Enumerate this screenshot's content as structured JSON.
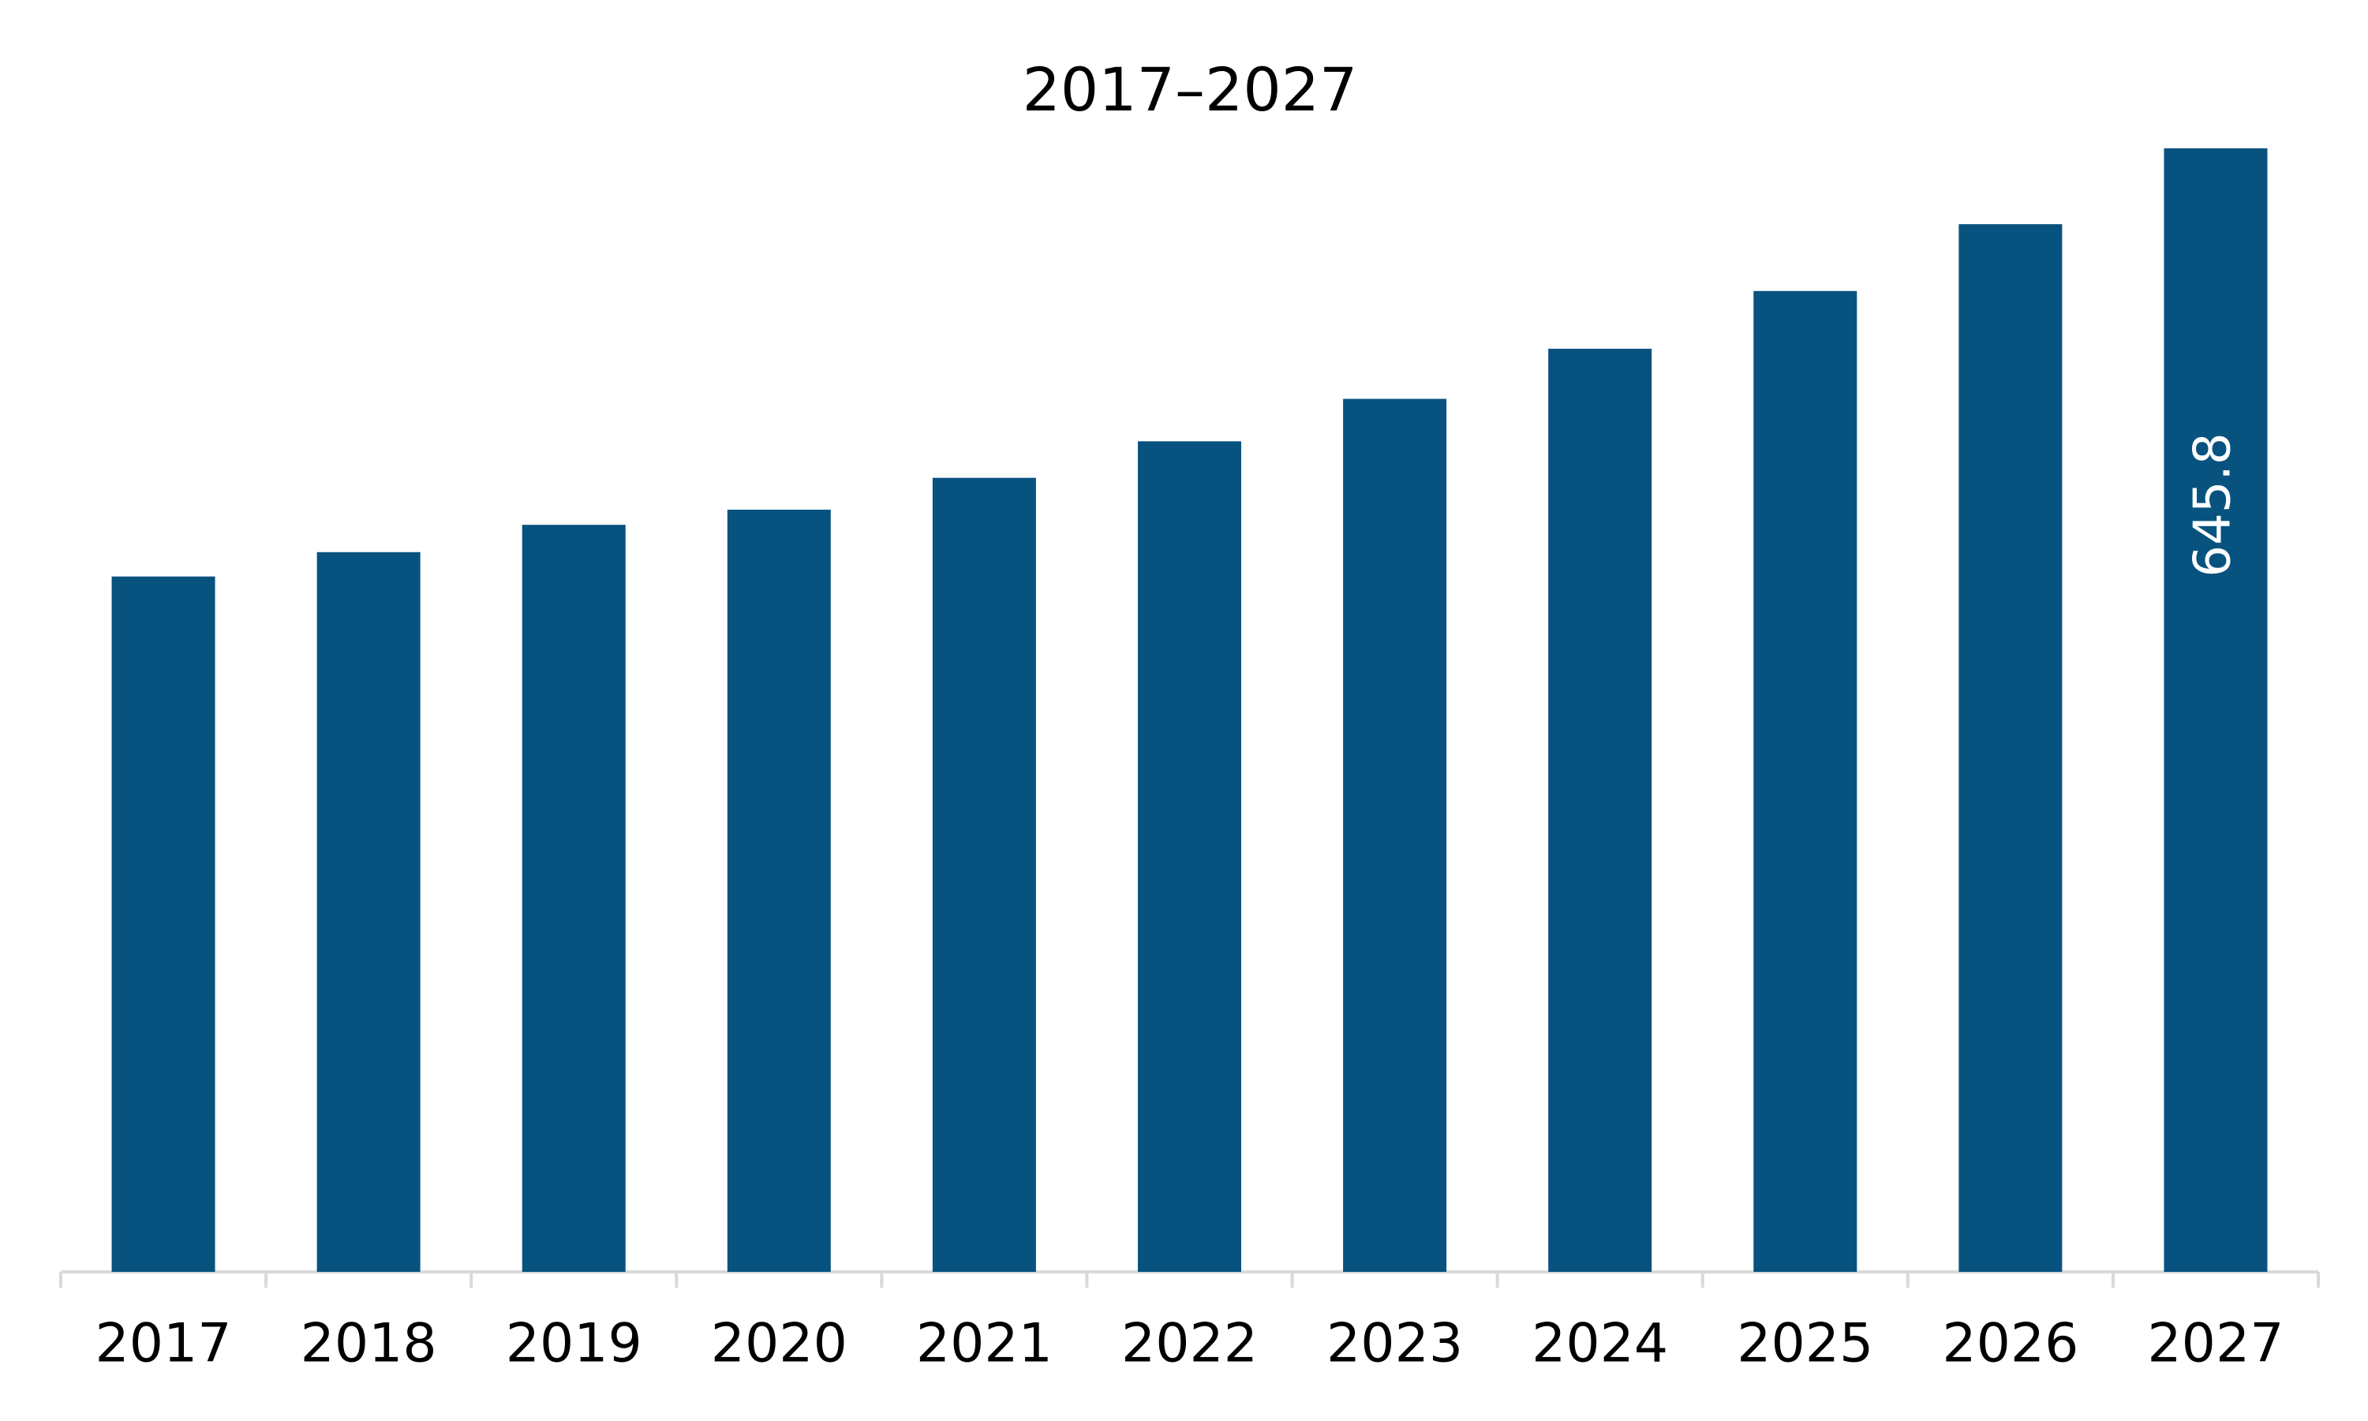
{
  "chart_data": {
    "type": "bar",
    "title": "2017–2027",
    "categories": [
      "2017",
      "2018",
      "2019",
      "2020",
      "2021",
      "2022",
      "2023",
      "2024",
      "2025",
      "2026",
      "2027"
    ],
    "values": [
      399.7,
      413.7,
      429.4,
      438.1,
      456.4,
      477.4,
      501.8,
      530.6,
      563.8,
      602.2,
      645.8
    ],
    "value_labels": [
      null,
      null,
      null,
      null,
      null,
      null,
      null,
      null,
      null,
      null,
      "645.8"
    ],
    "color": "#08527f"
  }
}
